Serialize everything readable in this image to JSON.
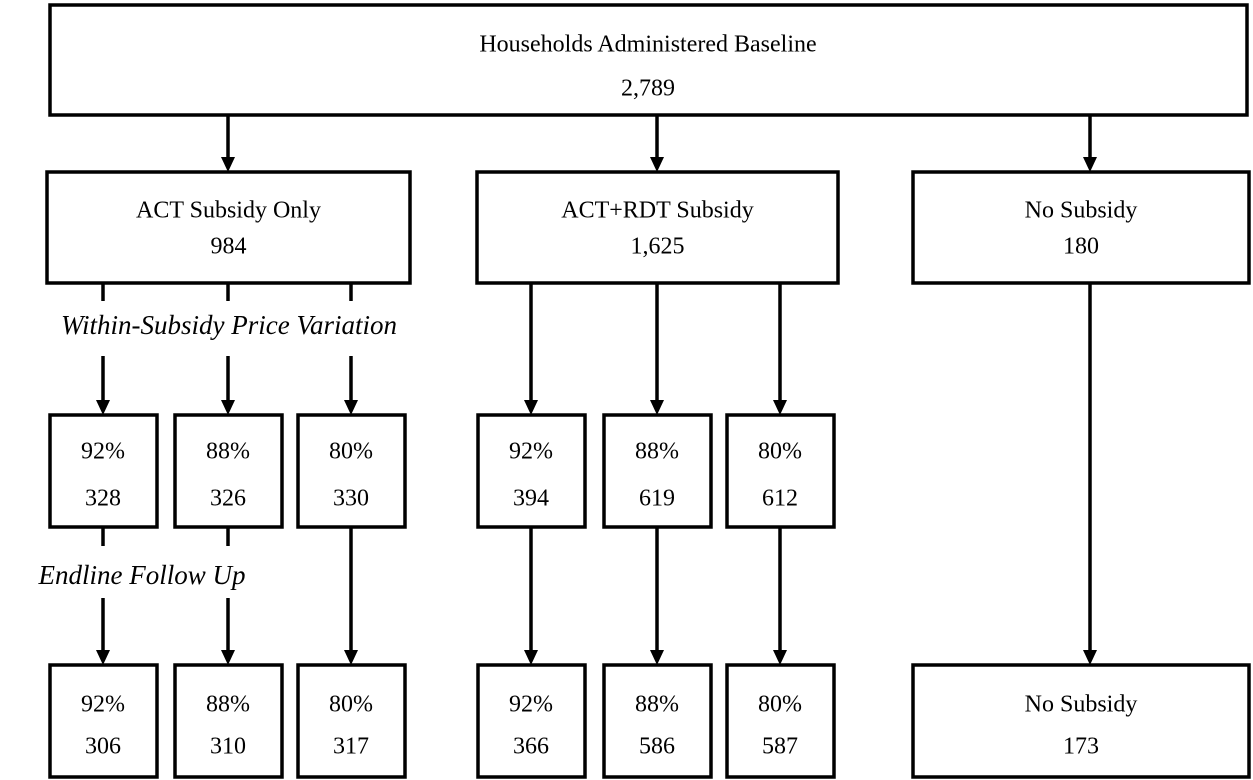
{
  "root": {
    "label": "Households Administered Baseline",
    "count": "2,789"
  },
  "arms": [
    {
      "label": "ACT Subsidy Only",
      "count": "984",
      "groups": [
        {
          "percent": "92%",
          "baseline": "328",
          "endline": "306"
        },
        {
          "percent": "88%",
          "baseline": "326",
          "endline": "310"
        },
        {
          "percent": "80%",
          "baseline": "330",
          "endline": "317"
        }
      ]
    },
    {
      "label": "ACT+RDT Subsidy",
      "count": "1,625",
      "groups": [
        {
          "percent": "92%",
          "baseline": "394",
          "endline": "366"
        },
        {
          "percent": "88%",
          "baseline": "619",
          "endline": "586"
        },
        {
          "percent": "80%",
          "baseline": "612",
          "endline": "587"
        }
      ]
    },
    {
      "label": "No Subsidy",
      "count": "180",
      "endline": {
        "label": "No Subsidy",
        "count": "173"
      }
    }
  ],
  "annotations": {
    "price_variation": "Within-Subsidy Price Variation",
    "follow_up": "Endline Follow Up"
  }
}
